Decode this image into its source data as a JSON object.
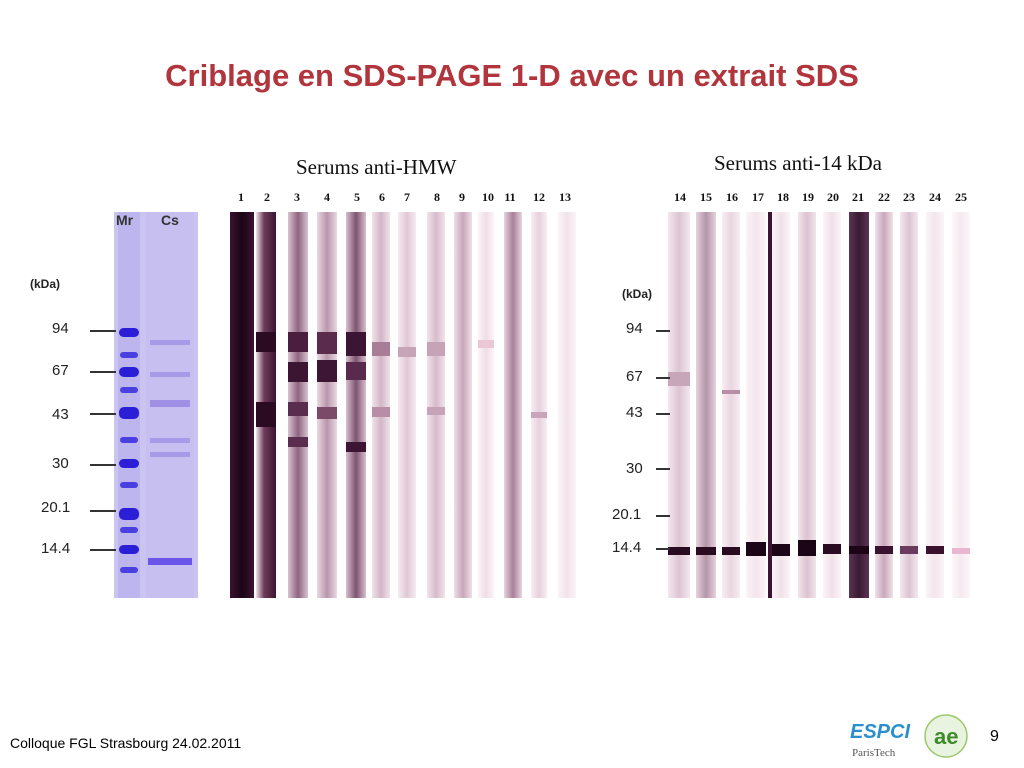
{
  "slide": {
    "title": "Criblage en SDS-PAGE 1-D avec un extrait SDS",
    "footer": "Colloque FGL Strasbourg  24.02.2011",
    "page_number": "9"
  },
  "panel_coomassie": {
    "lane_labels": [
      "Mr",
      "Cs"
    ],
    "unit_label": "(kDa)",
    "markers": [
      "94",
      "67",
      "43",
      "30",
      "20.1",
      "14.4"
    ]
  },
  "panel_hmw": {
    "title": "Serums anti-HMW",
    "lanes": [
      "1",
      "2",
      "3",
      "4",
      "5",
      "6",
      "7",
      "8",
      "9",
      "10",
      "11",
      "12",
      "13"
    ]
  },
  "panel_14kda": {
    "title": "Serums anti-14 kDa",
    "unit_label": "(kDa)",
    "markers": [
      "94",
      "67",
      "43",
      "30",
      "20.1",
      "14.4"
    ],
    "lanes": [
      "14",
      "15",
      "16",
      "17",
      "18",
      "19",
      "20",
      "21",
      "22",
      "23",
      "24",
      "25"
    ]
  },
  "logo": {
    "brand_text": "ESPCI",
    "sub_text": "ParisTech",
    "emblem_text": "ae"
  },
  "colors": {
    "title": "#b1353d",
    "coomassie_bg": "#c6c2ef",
    "coomassie_band": "#3b2fd0",
    "western_stain": "#4a1f3c"
  }
}
